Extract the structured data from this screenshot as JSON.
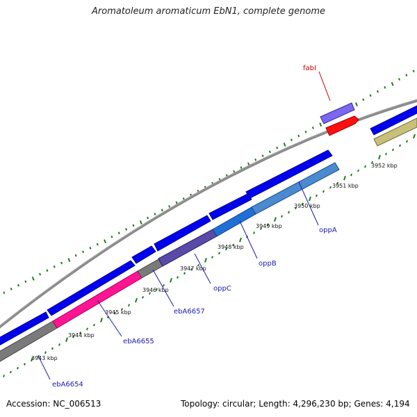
{
  "title": "Aromatoleum aromaticum EbN1, complete genome",
  "footer": {
    "accession": "Accession: NC_006513",
    "summary": "Topology: circular; Length: 4,296,230 bp; Genes: 4,194"
  },
  "colors": {
    "backbone": "#8c8c8c",
    "cds_forward": "#0000ee",
    "cds_reverse": "#1f6fd6",
    "pink": "#ff1493",
    "gray_gene": "#7a7a7a",
    "purple_gene": "#5a4aa8",
    "light_purple": "#7b68ee",
    "red_gene": "#ff1010",
    "olive_gene": "#c8c07a",
    "tick_green": "#1a7a1a",
    "label_blue": "#1a1ab0",
    "label_red": "#cc0000"
  },
  "ticks": [
    {
      "label": "3943 kbp"
    },
    {
      "label": "3944 kbp"
    },
    {
      "label": "3945 kbp"
    },
    {
      "label": "3946 kbp"
    },
    {
      "label": "3947 kbp"
    },
    {
      "label": "3948 kbp"
    },
    {
      "label": "3949 kbp"
    },
    {
      "label": "3950 kbp"
    },
    {
      "label": "3951 kbp"
    },
    {
      "label": "3952 kbp"
    }
  ],
  "gene_labels": [
    {
      "name": "ebA6654",
      "color": "label_blue"
    },
    {
      "name": "ebA6655",
      "color": "label_blue"
    },
    {
      "name": "ebA6657",
      "color": "label_blue"
    },
    {
      "name": "oppC",
      "color": "label_blue"
    },
    {
      "name": "oppB",
      "color": "label_blue"
    },
    {
      "name": "oppA",
      "color": "label_blue"
    },
    {
      "name": "fabI",
      "color": "label_red"
    }
  ]
}
